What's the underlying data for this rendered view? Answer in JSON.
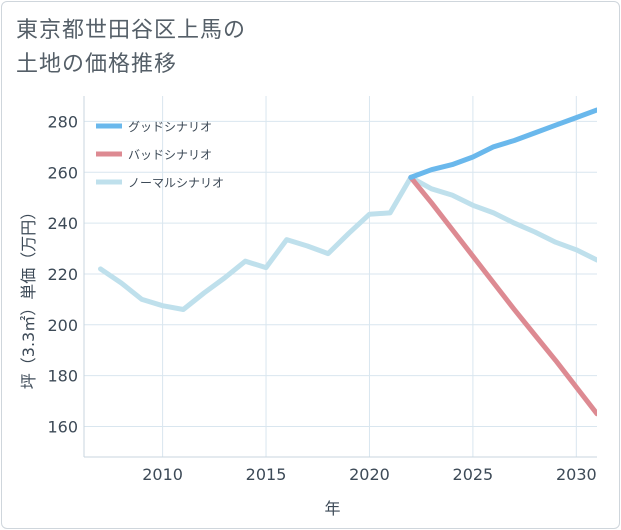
{
  "title_line1": "東京都世田谷区上馬の",
  "title_line2": "土地の価格推移",
  "colors": {
    "good": "#6ab8ec",
    "bad": "#dd8a92",
    "normal": "#bfe0ec",
    "grid": "#d9e6ef",
    "axis": "#3d4a57"
  },
  "chart_data": {
    "type": "line",
    "title": "東京都世田谷区上馬の土地の価格推移",
    "xlabel": "年",
    "ylabel": "坪（3.3㎡）単価（万円）",
    "xlim": [
      2006.2,
      2031
    ],
    "ylim": [
      148,
      290
    ],
    "x_ticks": [
      2010,
      2015,
      2020,
      2025,
      2030
    ],
    "y_ticks": [
      160,
      180,
      200,
      220,
      240,
      260,
      280
    ],
    "grid": true,
    "legend_position": "top-left",
    "series": [
      {
        "name": "グッドシナリオ",
        "color": "#6ab8ec",
        "points": [
          [
            2022,
            258
          ],
          [
            2023,
            261
          ],
          [
            2024,
            263
          ],
          [
            2025,
            266
          ],
          [
            2026,
            270
          ],
          [
            2027,
            272.5
          ],
          [
            2028,
            275.5
          ],
          [
            2029,
            278.5
          ],
          [
            2030,
            281.5
          ],
          [
            2031,
            284.5
          ]
        ]
      },
      {
        "name": "バッドシナリオ",
        "color": "#dd8a92",
        "points": [
          [
            2022,
            258
          ],
          [
            2023,
            248
          ],
          [
            2024,
            237.5
          ],
          [
            2025,
            227
          ],
          [
            2026,
            216.5
          ],
          [
            2027,
            206
          ],
          [
            2028,
            196
          ],
          [
            2029,
            186
          ],
          [
            2030,
            175.5
          ],
          [
            2031,
            165
          ]
        ]
      },
      {
        "name": "ノーマルシナリオ",
        "color": "#bfe0ec",
        "points": [
          [
            2007,
            222
          ],
          [
            2008,
            216.5
          ],
          [
            2009,
            210
          ],
          [
            2010,
            207.5
          ],
          [
            2011,
            206
          ],
          [
            2012,
            212.5
          ],
          [
            2013,
            218.5
          ],
          [
            2014,
            225
          ],
          [
            2015,
            222.5
          ],
          [
            2016,
            233.5
          ],
          [
            2017,
            231
          ],
          [
            2018,
            228
          ],
          [
            2019,
            236
          ],
          [
            2020,
            243.5
          ],
          [
            2021,
            244
          ],
          [
            2022,
            258
          ],
          [
            2023,
            253.5
          ],
          [
            2024,
            251
          ],
          [
            2025,
            247
          ],
          [
            2026,
            244
          ],
          [
            2027,
            240
          ],
          [
            2028,
            236.5
          ],
          [
            2029,
            232.5
          ],
          [
            2030,
            229.5
          ],
          [
            2031,
            225.5
          ]
        ]
      }
    ]
  }
}
